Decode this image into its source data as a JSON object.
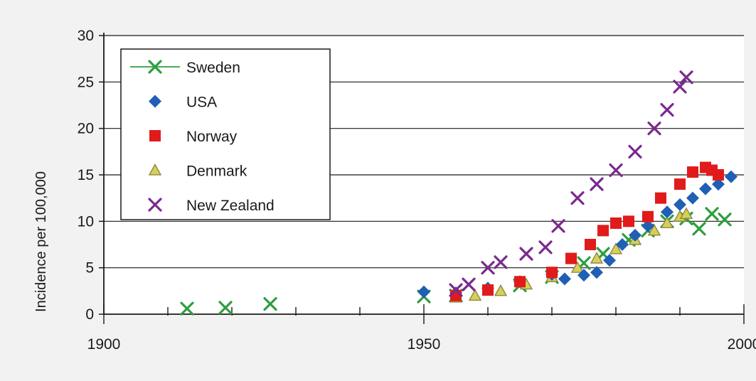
{
  "colors": {
    "background": "#f2f2f2",
    "plot_background": "#ffffff",
    "gridline": "#1a1a1a",
    "Sweden": "#2e9e3e",
    "USA": "#1f5fb4",
    "Norway": "#e11b1b",
    "Denmark": "#d8cf5a",
    "Denmark_edge": "#8a8a40",
    "New Zealand": "#7a2a8e"
  },
  "chart_data": {
    "type": "scatter",
    "title": "",
    "xlabel": "",
    "ylabel": "Incidence per 100,000",
    "xlim": [
      1900,
      2000
    ],
    "ylim": [
      0,
      30
    ],
    "x_ticks": [
      1900,
      1950,
      2000
    ],
    "y_ticks": [
      0,
      5,
      10,
      15,
      20,
      25,
      30
    ],
    "grid": "horizontal",
    "legend_position": "top-left",
    "series": [
      {
        "name": "Sweden",
        "marker": "x-line",
        "points": [
          [
            1913,
            0.6
          ],
          [
            1919,
            0.7
          ],
          [
            1926,
            1.1
          ],
          [
            1950,
            1.9
          ],
          [
            1955,
            2.0
          ],
          [
            1965,
            3.1
          ],
          [
            1970,
            4.0
          ],
          [
            1975,
            5.5
          ],
          [
            1978,
            6.5
          ],
          [
            1982,
            8.0
          ],
          [
            1985,
            9.0
          ],
          [
            1988,
            10.0
          ],
          [
            1991,
            10.3
          ],
          [
            1993,
            9.2
          ],
          [
            1995,
            10.8
          ],
          [
            1997,
            10.2
          ]
        ]
      },
      {
        "name": "USA",
        "marker": "diamond",
        "points": [
          [
            1950,
            2.4
          ],
          [
            1955,
            2.3
          ],
          [
            1960,
            2.8
          ],
          [
            1965,
            3.5
          ],
          [
            1970,
            4.3
          ],
          [
            1972,
            3.8
          ],
          [
            1975,
            4.2
          ],
          [
            1977,
            4.5
          ],
          [
            1979,
            5.8
          ],
          [
            1981,
            7.5
          ],
          [
            1983,
            8.5
          ],
          [
            1985,
            9.5
          ],
          [
            1988,
            11.0
          ],
          [
            1990,
            11.8
          ],
          [
            1992,
            12.5
          ],
          [
            1994,
            13.5
          ],
          [
            1996,
            14.0
          ],
          [
            1998,
            14.8
          ]
        ]
      },
      {
        "name": "Norway",
        "marker": "square",
        "points": [
          [
            1955,
            2.0
          ],
          [
            1960,
            2.6
          ],
          [
            1965,
            3.5
          ],
          [
            1970,
            4.5
          ],
          [
            1973,
            6.0
          ],
          [
            1976,
            7.5
          ],
          [
            1978,
            9.0
          ],
          [
            1980,
            9.8
          ],
          [
            1982,
            10.0
          ],
          [
            1985,
            10.5
          ],
          [
            1987,
            12.5
          ],
          [
            1990,
            14.0
          ],
          [
            1992,
            15.3
          ],
          [
            1994,
            15.8
          ],
          [
            1995,
            15.5
          ],
          [
            1996,
            15.0
          ]
        ]
      },
      {
        "name": "Denmark",
        "marker": "triangle",
        "points": [
          [
            1955,
            1.8
          ],
          [
            1958,
            2.0
          ],
          [
            1962,
            2.5
          ],
          [
            1966,
            3.2
          ],
          [
            1970,
            4.0
          ],
          [
            1974,
            5.0
          ],
          [
            1977,
            6.0
          ],
          [
            1980,
            7.0
          ],
          [
            1983,
            8.0
          ],
          [
            1986,
            9.0
          ],
          [
            1988,
            9.8
          ],
          [
            1990,
            10.5
          ],
          [
            1991,
            10.8
          ]
        ]
      },
      {
        "name": "New Zealand",
        "marker": "x",
        "points": [
          [
            1955,
            2.6
          ],
          [
            1957,
            3.2
          ],
          [
            1960,
            5.0
          ],
          [
            1962,
            5.6
          ],
          [
            1966,
            6.5
          ],
          [
            1969,
            7.2
          ],
          [
            1971,
            9.5
          ],
          [
            1974,
            12.5
          ],
          [
            1977,
            14.0
          ],
          [
            1980,
            15.5
          ],
          [
            1983,
            17.5
          ],
          [
            1986,
            20.0
          ],
          [
            1988,
            22.0
          ],
          [
            1990,
            24.5
          ],
          [
            1991,
            25.5
          ]
        ]
      }
    ]
  }
}
